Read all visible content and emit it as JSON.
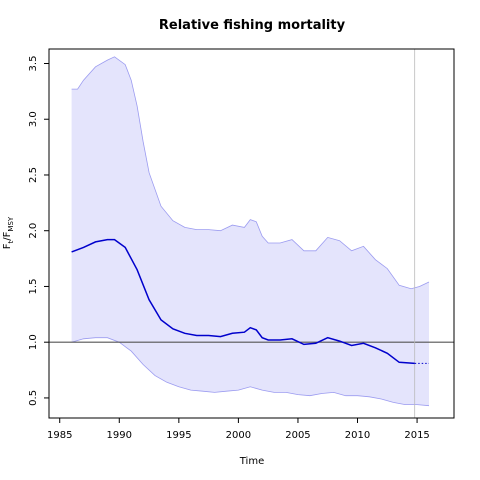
{
  "chart_data": {
    "type": "line",
    "title": "Relative fishing mortality",
    "xlabel": "Time",
    "ylabel": {
      "main": "F",
      "sub1": "t",
      "sep": "/F",
      "sub2": "MSY"
    },
    "xlim": [
      1984.1,
      2018.1
    ],
    "ylim": [
      0.32,
      3.63
    ],
    "x_ticks": [
      1985,
      1990,
      1995,
      2000,
      2005,
      2010,
      2015
    ],
    "y_ticks": [
      0.5,
      1.0,
      1.5,
      2.0,
      2.5,
      3.0,
      3.5
    ],
    "reference_line": 1.0,
    "last_data_year": 2014.8,
    "colors": {
      "estimate": "#0000cc",
      "band_fill": "#e4e4fc",
      "band_edge": "#9b9bf0",
      "reference": "#555555",
      "vline": "#bbbbbb"
    },
    "series": [
      {
        "x": [
          1986,
          1987,
          1988,
          1989,
          1989.6,
          1990.5,
          1991.5,
          1992.5,
          1993.5,
          1994.5,
          1995.5,
          1996.5,
          1997.5,
          1998.5,
          1999.5,
          2000.5,
          2001,
          2001.5,
          2002,
          2002.5,
          2003.5,
          2004.5,
          2005.5,
          2006.5,
          2007.5,
          2008.5,
          2009.5,
          2010.5,
          2011.5,
          2012.5,
          2013.5,
          2014.8
        ],
        "y": [
          1.81,
          1.85,
          1.9,
          1.92,
          1.92,
          1.85,
          1.65,
          1.38,
          1.2,
          1.12,
          1.08,
          1.06,
          1.06,
          1.05,
          1.08,
          1.09,
          1.13,
          1.11,
          1.04,
          1.02,
          1.02,
          1.03,
          0.98,
          0.99,
          1.04,
          1.01,
          0.97,
          0.99,
          0.95,
          0.9,
          0.82,
          0.81
        ]
      },
      {
        "x": [
          2014.8,
          2016
        ],
        "y": [
          0.81,
          0.81
        ]
      },
      {
        "x": [
          1986,
          1986.5,
          1987,
          1988,
          1989,
          1989.6,
          1990.5,
          1991,
          1991.5,
          1992,
          1992.5,
          1993.5,
          1994.5,
          1995.5,
          1996.5,
          1997.5,
          1998.5,
          1999.5,
          2000.5,
          2001,
          2001.5,
          2002,
          2002.5,
          2003.5,
          2004.5,
          2005.5,
          2006.5,
          2007.5,
          2008.5,
          2009.5,
          2010.5,
          2011.5,
          2012.5,
          2013.5,
          2014.5,
          2015.2,
          2016
        ],
        "y": [
          3.27,
          3.27,
          3.35,
          3.47,
          3.53,
          3.56,
          3.49,
          3.35,
          3.12,
          2.8,
          2.52,
          2.22,
          2.09,
          2.03,
          2.01,
          2.01,
          2.0,
          2.05,
          2.03,
          2.1,
          2.08,
          1.95,
          1.89,
          1.89,
          1.92,
          1.82,
          1.82,
          1.94,
          1.91,
          1.82,
          1.86,
          1.74,
          1.66,
          1.51,
          1.48,
          1.5,
          1.54
        ]
      },
      {
        "x": [
          1986,
          1987,
          1988,
          1989,
          1990,
          1991,
          1992,
          1993,
          1994,
          1995,
          1996,
          1997,
          1998,
          1999,
          2000,
          2001,
          2002,
          2003,
          2004,
          2005,
          2006,
          2007,
          2008,
          2009,
          2010,
          2011,
          2012,
          2013,
          2014,
          2015,
          2016
        ],
        "y": [
          1.0,
          1.03,
          1.04,
          1.04,
          1.0,
          0.92,
          0.8,
          0.7,
          0.64,
          0.6,
          0.57,
          0.56,
          0.55,
          0.56,
          0.57,
          0.6,
          0.57,
          0.55,
          0.55,
          0.53,
          0.52,
          0.54,
          0.55,
          0.52,
          0.52,
          0.51,
          0.49,
          0.46,
          0.44,
          0.44,
          0.43
        ]
      }
    ]
  }
}
